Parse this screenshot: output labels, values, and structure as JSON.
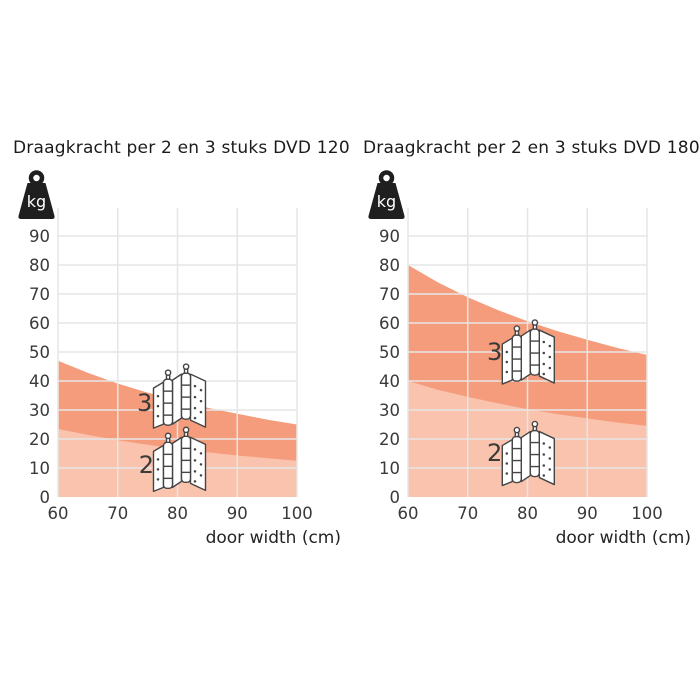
{
  "page": {
    "background": "#ffffff",
    "description": "Load capacity infographic for 2 and 3 hinges, DVD 120 and DVD 180 models"
  },
  "colors": {
    "grid": "#e6e6e6",
    "tick_text": "#3a3a3a",
    "title_text": "#1b1b1b",
    "annotation_text": "#3a3a3a",
    "weight_icon": "#1f1f1f",
    "hinge_outline": "#454545",
    "area_3_hinges": "#f49c7b",
    "area_2_hinges": "#f9c3ad"
  },
  "chart_data": [
    {
      "type": "area",
      "title": "Draagkracht per 2 en 3 stuks DVD 120",
      "xlabel": "door width (cm)",
      "ylabel": "kg",
      "unit_badge": "kg",
      "xlim": [
        60,
        100
      ],
      "ylim": [
        0,
        99.7
      ],
      "x_ticks": [
        60,
        70,
        80,
        90,
        100
      ],
      "y_ticks": [
        0,
        10,
        20,
        30,
        40,
        50,
        60,
        70,
        80,
        90
      ],
      "grid": true,
      "x": [
        60,
        65,
        70,
        75,
        80,
        85,
        90,
        95,
        100
      ],
      "series": [
        {
          "name": "3 hinges",
          "label": "3",
          "values": [
            47.0,
            42.8,
            39.1,
            36.0,
            33.3,
            30.8,
            28.7,
            26.7,
            25.0
          ],
          "color": "#f49c7b"
        },
        {
          "name": "2 hinges",
          "label": "2",
          "values": [
            23.5,
            21.4,
            19.6,
            18.0,
            16.6,
            15.4,
            14.3,
            13.4,
            12.5
          ],
          "color": "#f9c3ad"
        }
      ],
      "annotations": [
        {
          "label": "3",
          "label_x_cm": 74.5,
          "label_y_kg": 32.4,
          "hinge_x_cm": 80.5,
          "hinge_y_kg": 33.4
        },
        {
          "label": "2",
          "label_x_cm": 74.8,
          "label_y_kg": 11.0,
          "hinge_x_cm": 80.5,
          "hinge_y_kg": 11.6
        }
      ]
    },
    {
      "type": "area",
      "title": "Draagkracht per 2 en 3 stuks DVD 180",
      "xlabel": "door width (cm)",
      "ylabel": "kg",
      "unit_badge": "kg",
      "xlim": [
        60,
        100
      ],
      "ylim": [
        0,
        99.7
      ],
      "x_ticks": [
        60,
        70,
        80,
        90,
        100
      ],
      "y_ticks": [
        0,
        10,
        20,
        30,
        40,
        50,
        60,
        70,
        80,
        90
      ],
      "grid": true,
      "x": [
        60,
        65,
        70,
        75,
        80,
        85,
        90,
        95,
        100
      ],
      "series": [
        {
          "name": "3 hinges",
          "label": "3",
          "values": [
            80.0,
            74.0,
            68.9,
            64.5,
            60.6,
            57.2,
            54.2,
            51.4,
            49.0
          ],
          "color": "#f49c7b"
        },
        {
          "name": "2 hinges",
          "label": "2",
          "values": [
            40.0,
            37.0,
            34.5,
            32.3,
            30.3,
            28.6,
            27.1,
            25.7,
            24.5
          ],
          "color": "#f9c3ad"
        }
      ],
      "annotations": [
        {
          "label": "3",
          "label_x_cm": 74.5,
          "label_y_kg": 50.0,
          "hinge_x_cm": 80.3,
          "hinge_y_kg": 48.6
        },
        {
          "label": "2",
          "label_x_cm": 74.5,
          "label_y_kg": 15.2,
          "hinge_x_cm": 80.3,
          "hinge_y_kg": 13.6
        }
      ]
    }
  ]
}
